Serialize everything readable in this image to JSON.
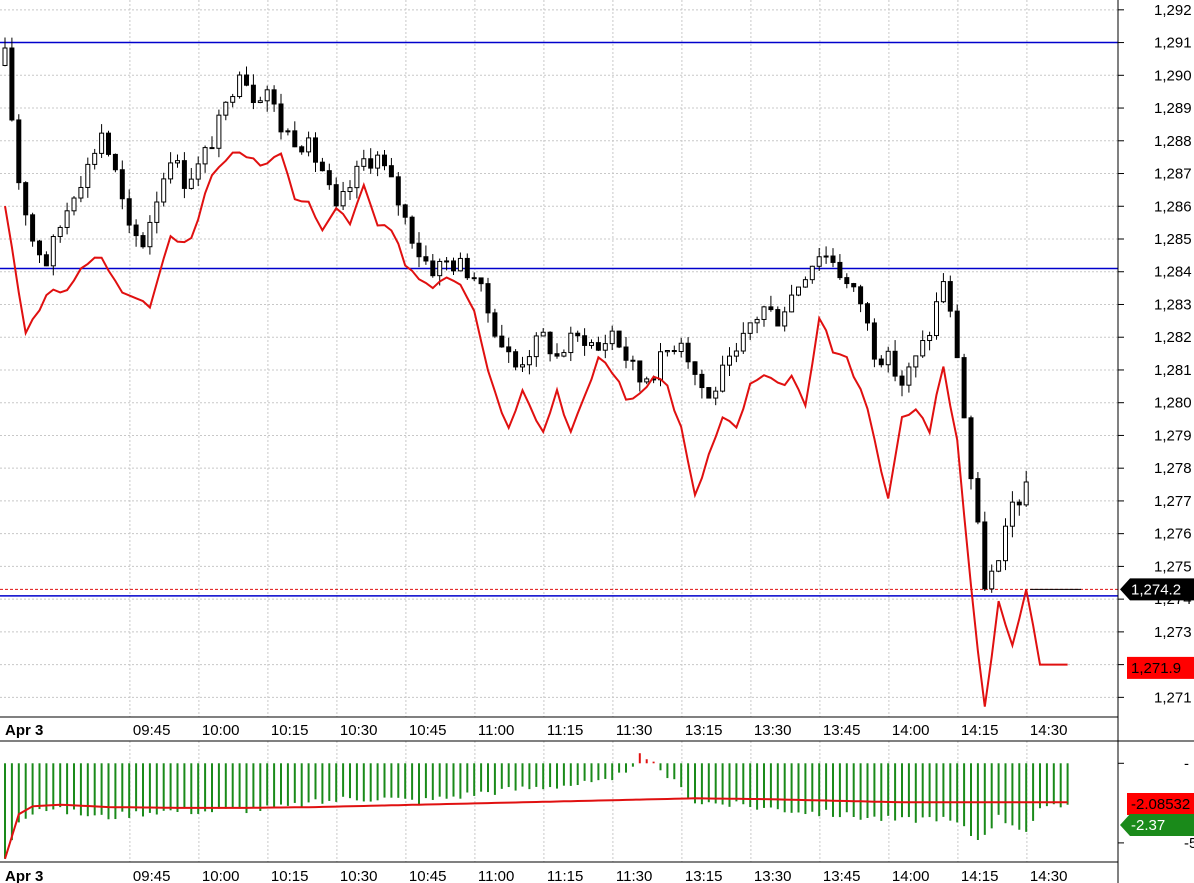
{
  "colors": {
    "price_candles": "#000000",
    "overlay_line": "#e01010",
    "hlines": "#0000cc",
    "volume_bars": "#1a8a1a",
    "volume_up_bar": "#e01010",
    "current_price_tag": "#000000",
    "overlay_tag": "#ff0000",
    "indicator_tag_red": "#ff0000",
    "indicator_tag_green": "#1a8a1a",
    "grid": "#c8c8c8"
  },
  "chart_data": {
    "type": "candlestick",
    "grid": true,
    "price_axis": {
      "range": [
        1270.4,
        1292.3
      ],
      "ticks": [
        1271,
        1272,
        1273,
        1274,
        1275,
        1276,
        1277,
        1278,
        1279,
        1280,
        1281,
        1282,
        1283,
        1284,
        1285,
        1286,
        1287,
        1288,
        1289,
        1290,
        1291,
        1292
      ],
      "tick_labels": [
        "1,271",
        "1,272",
        "1,273",
        "1,274",
        "1,275",
        "1,276",
        "1,277",
        "1,278",
        "1,279",
        "1,280",
        "1,281",
        "1,282",
        "1,283",
        "1,284",
        "1,285",
        "1,286",
        "1,287",
        "1,288",
        "1,289",
        "1,290",
        "1,291",
        "1,292"
      ]
    },
    "time_axis": {
      "labels": [
        "Apr 3",
        "09:45",
        "10:00",
        "10:15",
        "10:30",
        "10:45",
        "11:00",
        "11:15",
        "11:30",
        "13:15",
        "13:30",
        "13:45",
        "14:00",
        "14:15",
        "14:30"
      ],
      "label_bar_index": [
        0,
        21,
        31,
        41,
        51,
        61,
        71,
        81,
        91,
        101,
        111,
        121,
        131,
        141,
        151
      ]
    },
    "bar_count": 155,
    "horizontal_lines": [
      1291.0,
      1284.1,
      1274.1
    ],
    "current_price_line": 1274.3,
    "price_tag": "1,274.2",
    "overlay_tag": "1,271.9",
    "overlay_keyframes": [
      [
        0,
        1286.0
      ],
      [
        3,
        1282.2
      ],
      [
        6,
        1283.3
      ],
      [
        9,
        1283.4
      ],
      [
        12,
        1284.3
      ],
      [
        14,
        1284.4
      ],
      [
        16,
        1283.6
      ],
      [
        19,
        1283.2
      ],
      [
        21,
        1282.9
      ],
      [
        24,
        1285.0
      ],
      [
        27,
        1285.0
      ],
      [
        30,
        1287.0
      ],
      [
        33,
        1287.7
      ],
      [
        35,
        1287.4
      ],
      [
        37,
        1287.3
      ],
      [
        40,
        1287.5
      ],
      [
        42,
        1286.3
      ],
      [
        44,
        1286.1
      ],
      [
        46,
        1285.2
      ],
      [
        48,
        1286.0
      ],
      [
        50,
        1285.4
      ],
      [
        52,
        1286.6
      ],
      [
        54,
        1285.4
      ],
      [
        56,
        1285.2
      ],
      [
        58,
        1284.3
      ],
      [
        60,
        1283.8
      ],
      [
        62,
        1283.6
      ],
      [
        64,
        1283.9
      ],
      [
        66,
        1283.7
      ],
      [
        68,
        1282.9
      ],
      [
        70,
        1281.0
      ],
      [
        73,
        1279.2
      ],
      [
        75,
        1280.5
      ],
      [
        78,
        1279.1
      ],
      [
        80,
        1280.4
      ],
      [
        82,
        1279.1
      ],
      [
        84,
        1280.1
      ],
      [
        86,
        1281.4
      ],
      [
        88,
        1281.0
      ],
      [
        90,
        1280.1
      ],
      [
        92,
        1280.3
      ],
      [
        94,
        1280.9
      ],
      [
        96,
        1280.5
      ],
      [
        98,
        1279.2
      ],
      [
        100,
        1277.1
      ],
      [
        102,
        1278.4
      ],
      [
        104,
        1279.5
      ],
      [
        106,
        1279.2
      ],
      [
        108,
        1280.5
      ],
      [
        110,
        1280.8
      ],
      [
        112,
        1280.5
      ],
      [
        114,
        1280.8
      ],
      [
        116,
        1279.8
      ],
      [
        118,
        1282.7
      ],
      [
        120,
        1281.6
      ],
      [
        122,
        1281.3
      ],
      [
        124,
        1280.5
      ],
      [
        126,
        1279.0
      ],
      [
        128,
        1277.0
      ],
      [
        130,
        1279.5
      ],
      [
        132,
        1279.8
      ],
      [
        134,
        1279.2
      ],
      [
        136,
        1281.2
      ],
      [
        138,
        1278.8
      ],
      [
        140,
        1274.3
      ],
      [
        142,
        1270.7
      ],
      [
        144,
        1274.0
      ],
      [
        146,
        1272.5
      ],
      [
        148,
        1274.3
      ],
      [
        150,
        1272.0
      ],
      [
        154,
        1272.0
      ]
    ],
    "price_keyframes": [
      [
        0,
        1290.6
      ],
      [
        2,
        1286.8
      ],
      [
        4,
        1285.0
      ],
      [
        6,
        1284.3
      ],
      [
        8,
        1285.4
      ],
      [
        10,
        1286.5
      ],
      [
        12,
        1287.2
      ],
      [
        14,
        1288.3
      ],
      [
        16,
        1287.0
      ],
      [
        18,
        1285.2
      ],
      [
        20,
        1284.9
      ],
      [
        22,
        1286.3
      ],
      [
        24,
        1287.6
      ],
      [
        26,
        1286.8
      ],
      [
        28,
        1287.2
      ],
      [
        30,
        1288.0
      ],
      [
        32,
        1289.0
      ],
      [
        34,
        1290.3
      ],
      [
        36,
        1289.4
      ],
      [
        38,
        1289.6
      ],
      [
        40,
        1288.4
      ],
      [
        42,
        1288.1
      ],
      [
        44,
        1287.8
      ],
      [
        46,
        1287.1
      ],
      [
        48,
        1285.8
      ],
      [
        50,
        1286.6
      ],
      [
        52,
        1287.4
      ],
      [
        54,
        1287.5
      ],
      [
        56,
        1286.7
      ],
      [
        58,
        1285.6
      ],
      [
        60,
        1284.6
      ],
      [
        62,
        1284.1
      ],
      [
        64,
        1284.3
      ],
      [
        66,
        1284.2
      ],
      [
        68,
        1283.9
      ],
      [
        70,
        1282.8
      ],
      [
        72,
        1281.8
      ],
      [
        74,
        1281.1
      ],
      [
        76,
        1281.6
      ],
      [
        78,
        1282.0
      ],
      [
        80,
        1281.4
      ],
      [
        82,
        1281.9
      ],
      [
        84,
        1282.0
      ],
      [
        86,
        1281.6
      ],
      [
        88,
        1282.2
      ],
      [
        90,
        1281.4
      ],
      [
        92,
        1280.7
      ],
      [
        94,
        1281.0
      ],
      [
        96,
        1281.6
      ],
      [
        98,
        1282.0
      ],
      [
        100,
        1280.9
      ],
      [
        102,
        1280.1
      ],
      [
        104,
        1280.9
      ],
      [
        106,
        1281.4
      ],
      [
        108,
        1282.4
      ],
      [
        110,
        1282.9
      ],
      [
        112,
        1282.6
      ],
      [
        114,
        1283.3
      ],
      [
        116,
        1284.0
      ],
      [
        118,
        1284.6
      ],
      [
        120,
        1284.4
      ],
      [
        122,
        1283.6
      ],
      [
        124,
        1283.1
      ],
      [
        126,
        1281.6
      ],
      [
        128,
        1281.3
      ],
      [
        130,
        1280.6
      ],
      [
        132,
        1281.3
      ],
      [
        134,
        1282.2
      ],
      [
        136,
        1283.8
      ],
      [
        138,
        1281.5
      ],
      [
        140,
        1277.7
      ],
      [
        142,
        1274.5
      ],
      [
        144,
        1275.0
      ],
      [
        146,
        1276.9
      ],
      [
        148,
        1277.3
      ]
    ],
    "indicator": {
      "tag_red": "-2.08532",
      "tag_green": "-2.37",
      "axis_ticks": [
        0,
        -5
      ],
      "axis_labels": [
        "-",
        "-5"
      ],
      "range": [
        -6.2,
        1.4
      ],
      "line_keyframes": [
        [
          0,
          -6.0
        ],
        [
          2,
          -3.2
        ],
        [
          4,
          -2.7
        ],
        [
          8,
          -2.6
        ],
        [
          15,
          -2.75
        ],
        [
          25,
          -2.8
        ],
        [
          35,
          -2.8
        ],
        [
          45,
          -2.75
        ],
        [
          55,
          -2.65
        ],
        [
          65,
          -2.55
        ],
        [
          75,
          -2.45
        ],
        [
          85,
          -2.35
        ],
        [
          95,
          -2.25
        ],
        [
          100,
          -2.2
        ],
        [
          110,
          -2.25
        ],
        [
          120,
          -2.35
        ],
        [
          130,
          -2.45
        ],
        [
          140,
          -2.45
        ],
        [
          150,
          -2.45
        ],
        [
          154,
          -2.45
        ]
      ],
      "bar_keyframes": [
        [
          0,
          -5.9
        ],
        [
          2,
          -3.5
        ],
        [
          5,
          -2.8
        ],
        [
          10,
          -3.1
        ],
        [
          14,
          -3.4
        ],
        [
          18,
          -3.2
        ],
        [
          22,
          -3.0
        ],
        [
          30,
          -3.0
        ],
        [
          40,
          -2.8
        ],
        [
          50,
          -2.2
        ],
        [
          55,
          -2.2
        ],
        [
          60,
          -2.4
        ],
        [
          70,
          -1.8
        ],
        [
          80,
          -1.4
        ],
        [
          88,
          -1.2
        ],
        [
          92,
          0.4
        ],
        [
          95,
          -0.4
        ],
        [
          100,
          -2.4
        ],
        [
          110,
          -2.8
        ],
        [
          120,
          -3.2
        ],
        [
          130,
          -3.6
        ],
        [
          135,
          -3.4
        ],
        [
          138,
          -3.8
        ],
        [
          141,
          -4.8
        ],
        [
          144,
          -3.4
        ],
        [
          148,
          -4.2
        ],
        [
          150,
          -3.0
        ],
        [
          154,
          -2.6
        ]
      ]
    }
  }
}
